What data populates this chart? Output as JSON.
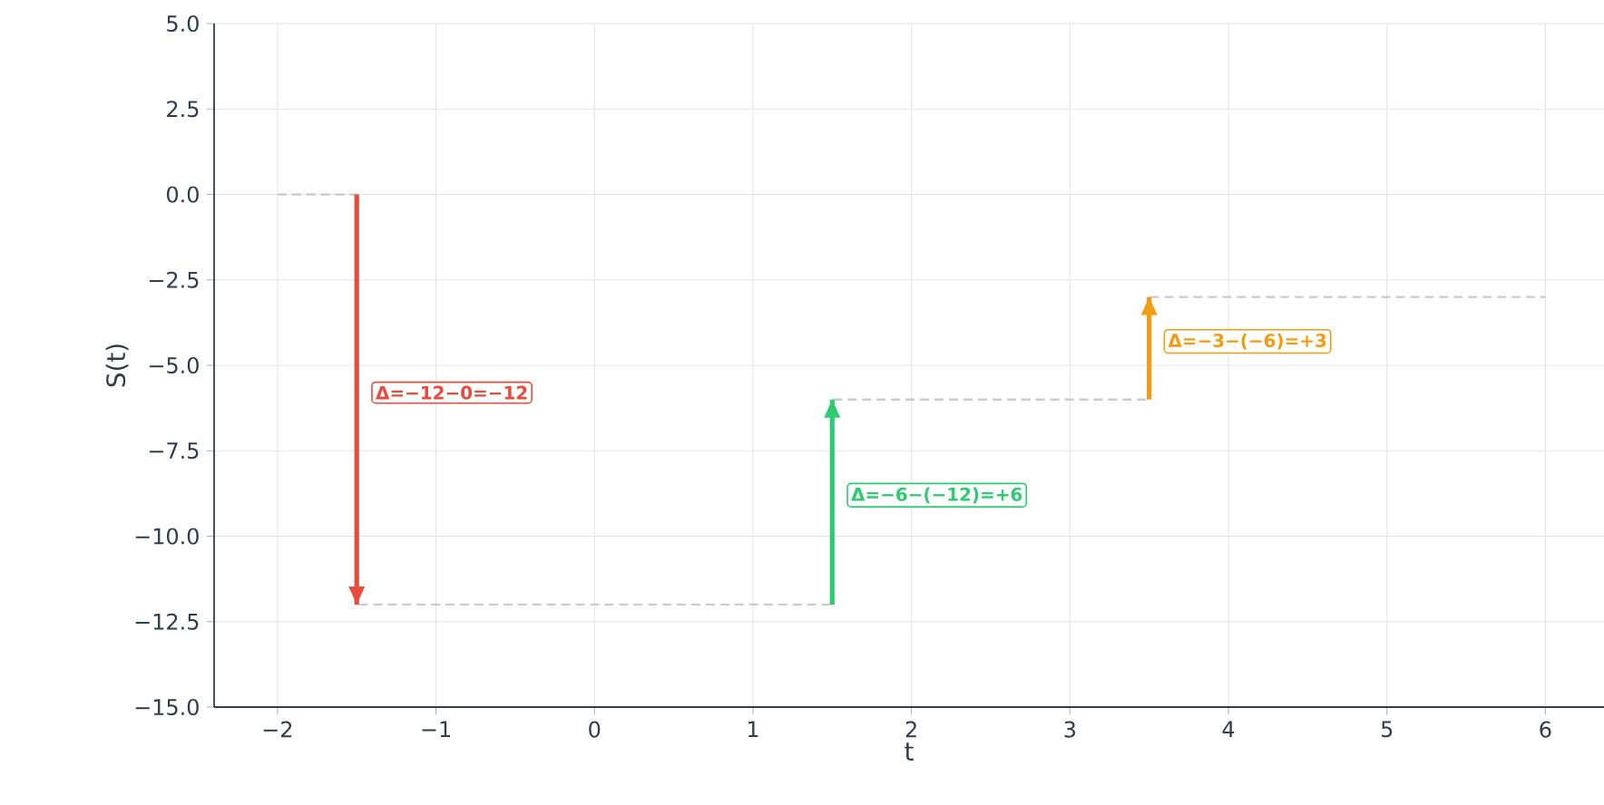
{
  "chart_data": {
    "type": "step",
    "xlabel": "t",
    "ylabel": "S(t)",
    "xlim": [
      -2.4,
      6.37
    ],
    "ylim": [
      -15,
      5
    ],
    "xticks": [
      {
        "value": -2,
        "label": "−2"
      },
      {
        "value": -1,
        "label": "−1"
      },
      0,
      1,
      2,
      3,
      4,
      5,
      6
    ],
    "yticks": [
      {
        "value": 5,
        "label": "5.0"
      },
      {
        "value": 2.5,
        "label": "2.5"
      },
      {
        "value": 0,
        "label": "0.0"
      },
      {
        "value": -2.5,
        "label": "−2.5"
      },
      {
        "value": -5,
        "label": "−5.0"
      },
      {
        "value": -7.5,
        "label": "−7.5"
      },
      {
        "value": -10,
        "label": "−10.0"
      },
      {
        "value": -12.5,
        "label": "−12.5"
      },
      {
        "value": -15,
        "label": "−15.0"
      }
    ],
    "grid": true,
    "marker": "none",
    "series": [
      {
        "color": "#cccccc",
        "line_style": "dashed",
        "x": [
          -2,
          -1.5,
          1.5,
          3.5,
          6
        ],
        "values": [
          0,
          -12,
          -6,
          -3,
          -3
        ]
      },
      {
        "type": "line",
        "color": "#e74c3c",
        "x": [
          -1.5,
          -1.5
        ],
        "values": [
          0,
          -12
        ]
      },
      {
        "type": "line",
        "color": "#2ecc71",
        "x": [
          1.5,
          1.5
        ],
        "values": [
          -12,
          -6
        ]
      },
      {
        "type": "line",
        "color": "#f39c12",
        "x": [
          3.5,
          3.5
        ],
        "values": [
          -6,
          -3
        ]
      }
    ],
    "annotations": [
      {
        "text": "Δ=−12−0=−12",
        "x": -1.5,
        "y": -5.8
      },
      {
        "text": "Δ=−6−(−12)=+6",
        "x": 1.5,
        "y": -8.8
      },
      {
        "text": "Δ=−3−(−6)=+3",
        "x": 3.5,
        "y": -4.3
      }
    ]
  }
}
